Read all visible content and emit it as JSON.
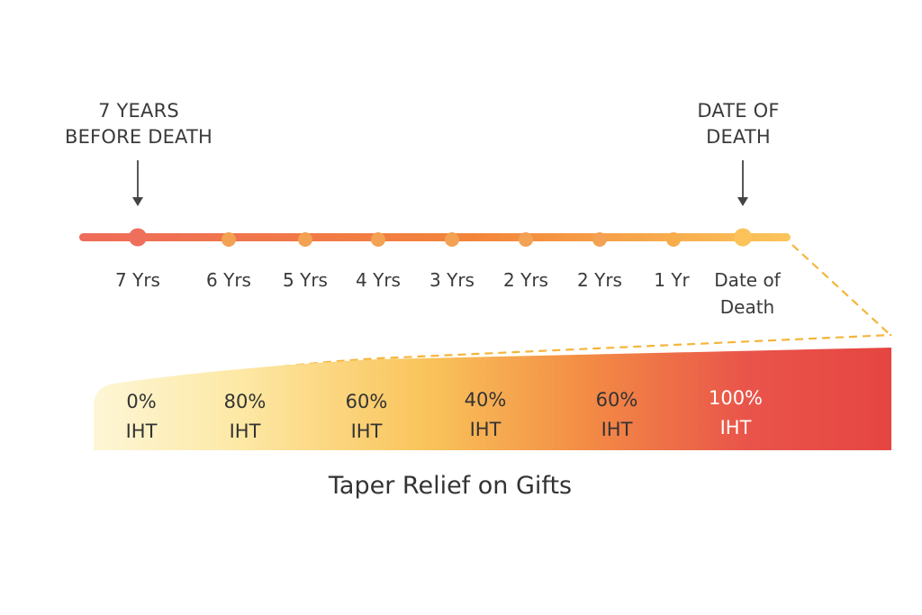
{
  "callouts": {
    "left": [
      "7 YEARS",
      "BEFORE DEATH"
    ],
    "right": [
      "DATE OF",
      "DEATH"
    ]
  },
  "timeline": {
    "labels": [
      "7 Yrs",
      "6 Yrs",
      "5 Yrs",
      "4 Yrs",
      "3 Yrs",
      "2 Yrs",
      "2 Yrs",
      "1 Yr",
      "Date of Death"
    ],
    "gift_icon": "gift-box-icon",
    "arrow_icon": "down-arrow-icon"
  },
  "relief_band": {
    "labels": [
      {
        "rate": "0%",
        "tax": "IHT"
      },
      {
        "rate": "80%",
        "tax": "IHT"
      },
      {
        "rate": "60%",
        "tax": "IHT"
      },
      {
        "rate": "40%",
        "tax": "IHT"
      },
      {
        "rate": "60%",
        "tax": "IHT"
      },
      {
        "rate": "100%",
        "tax": "IHT"
      }
    ]
  },
  "caption": "Taper Relief on Gifts",
  "colors": {
    "line_start": "#ef6b5a",
    "line_end": "#fbc55a",
    "gift_red": "#e8352f",
    "ribbon_gold": "#f3b533",
    "band_light": "#fdf3c9",
    "band_mid": "#f9c75b",
    "band_red": "#e84a44",
    "text_dark": "#333333"
  }
}
